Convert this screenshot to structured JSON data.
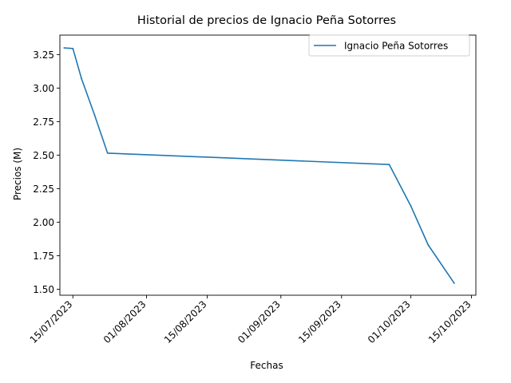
{
  "chart_data": {
    "type": "line",
    "title": "Historial de precios de Ignacio Peña Sotorres",
    "xlabel": "Fechas",
    "ylabel": "Precios (M)",
    "x_type": "date",
    "xlim": [
      "2023-07-12",
      "2023-10-16"
    ],
    "ylim": [
      1.455,
      3.395
    ],
    "x_ticks": [
      {
        "value": "2023-07-15",
        "label": "15/07/2023"
      },
      {
        "value": "2023-08-01",
        "label": "01/08/2023"
      },
      {
        "value": "2023-08-15",
        "label": "15/08/2023"
      },
      {
        "value": "2023-09-01",
        "label": "01/09/2023"
      },
      {
        "value": "2023-09-15",
        "label": "15/09/2023"
      },
      {
        "value": "2023-10-01",
        "label": "01/10/2023"
      },
      {
        "value": "2023-10-15",
        "label": "15/10/2023"
      }
    ],
    "y_ticks": [
      {
        "value": 1.5,
        "label": "1.50"
      },
      {
        "value": 1.75,
        "label": "1.75"
      },
      {
        "value": 2.0,
        "label": "2.00"
      },
      {
        "value": 2.25,
        "label": "2.25"
      },
      {
        "value": 2.5,
        "label": "2.50"
      },
      {
        "value": 2.75,
        "label": "2.75"
      },
      {
        "value": 3.0,
        "label": "3.00"
      },
      {
        "value": 3.25,
        "label": "3.25"
      }
    ],
    "grid": false,
    "legend_position": "top-right",
    "series": [
      {
        "name": "Ignacio Peña Sotorres",
        "color": "#1f77b4",
        "x": [
          "2023-07-13",
          "2023-07-15",
          "2023-07-17",
          "2023-07-20",
          "2023-07-23",
          "2023-09-26",
          "2023-10-01",
          "2023-10-05",
          "2023-10-11"
        ],
        "y": [
          3.3,
          3.295,
          3.07,
          2.8,
          2.515,
          2.43,
          2.12,
          1.83,
          1.545
        ]
      }
    ]
  }
}
